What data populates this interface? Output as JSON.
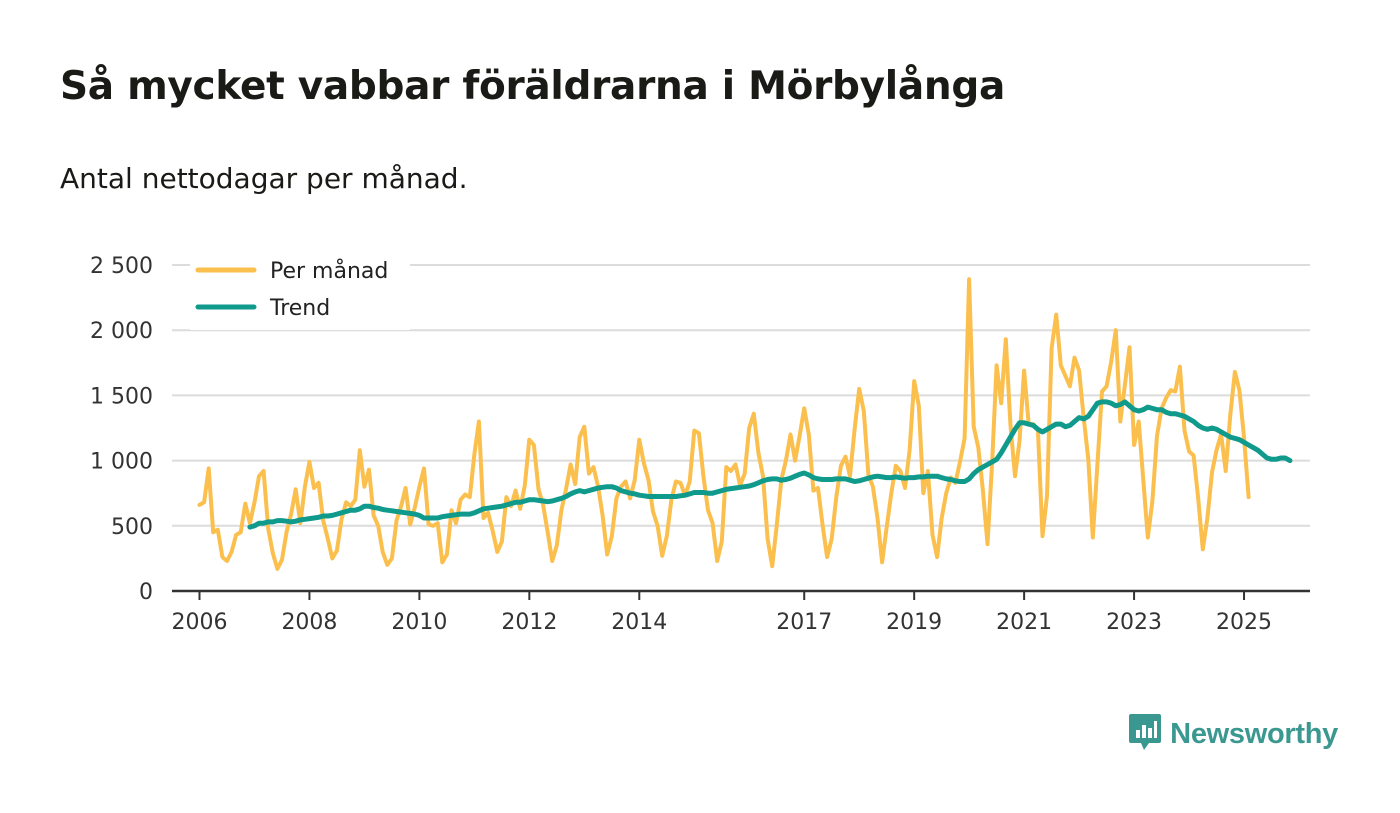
{
  "title": "Så mycket vabbar föräldrarna i Mörbylånga",
  "subtitle": "Antal nettodagar per månad.",
  "brand": {
    "name": "Newsworthy",
    "icon": "newsworthy-logo-icon",
    "color": "#3b9890"
  },
  "colors": {
    "monthly": "#fbbf4e",
    "trend": "#0f9a8c",
    "grid": "#dcdcdc",
    "axis": "#333333"
  },
  "chart_data": {
    "type": "line",
    "title": "Så mycket vabbar föräldrarna i Mörbylånga",
    "subtitle": "Antal nettodagar per månad.",
    "xlabel": "",
    "ylabel": "",
    "x_range": [
      2005.5,
      2026.2
    ],
    "ylim": [
      0,
      2500
    ],
    "y_ticks": [
      0,
      500,
      1000,
      1500,
      2000,
      2500
    ],
    "y_tick_labels": [
      "0",
      "500",
      "1 000",
      "1 500",
      "2 000",
      "2 500"
    ],
    "x_ticks": [
      2006,
      2008,
      2010,
      2012,
      2014,
      2017,
      2019,
      2021,
      2023,
      2025
    ],
    "x_tick_labels": [
      "2006",
      "2008",
      "2010",
      "2012",
      "2014",
      "2017",
      "2019",
      "2021",
      "2023",
      "2025"
    ],
    "grid": true,
    "legend_position": "top-left",
    "legend": [
      "Per månad",
      "Trend"
    ],
    "series": [
      {
        "name": "Per månad",
        "color": "#fbbf4e",
        "start_year": 2006,
        "step_months": 1,
        "values": [
          660,
          680,
          940,
          450,
          470,
          260,
          230,
          300,
          430,
          450,
          670,
          520,
          680,
          880,
          920,
          480,
          290,
          170,
          240,
          450,
          590,
          780,
          520,
          800,
          990,
          790,
          830,
          540,
          400,
          250,
          310,
          550,
          680,
          650,
          700,
          1080,
          800,
          930,
          580,
          500,
          300,
          200,
          250,
          540,
          650,
          790,
          510,
          640,
          800,
          940,
          510,
          500,
          520,
          220,
          280,
          620,
          520,
          700,
          740,
          720,
          1050,
          1300,
          560,
          600,
          460,
          300,
          380,
          720,
          650,
          770,
          630,
          810,
          1160,
          1120,
          780,
          660,
          450,
          230,
          350,
          620,
          780,
          970,
          820,
          1180,
          1260,
          900,
          950,
          800,
          580,
          280,
          420,
          710,
          800,
          840,
          710,
          850,
          1160,
          980,
          850,
          610,
          500,
          270,
          420,
          700,
          840,
          830,
          730,
          840,
          1230,
          1210,
          880,
          620,
          520,
          230,
          380,
          950,
          920,
          970,
          810,
          900,
          1250,
          1360,
          1060,
          880,
          400,
          190,
          500,
          850,
          1000,
          1200,
          1000,
          1190,
          1400,
          1200,
          770,
          790,
          510,
          260,
          400,
          720,
          960,
          1030,
          880,
          1240,
          1550,
          1380,
          890,
          800,
          560,
          220,
          490,
          750,
          960,
          920,
          790,
          1080,
          1610,
          1420,
          750,
          920,
          430,
          260,
          560,
          750,
          870,
          830,
          990,
          1170,
          2390,
          1260,
          1100,
          770,
          360,
          980,
          1730,
          1440,
          1930,
          1280,
          880,
          1150,
          1690,
          1280,
          1280,
          1240,
          420,
          730,
          1860,
          2120,
          1730,
          1650,
          1570,
          1790,
          1690,
          1330,
          1010,
          410,
          970,
          1530,
          1570,
          1760,
          2000,
          1300,
          1580,
          1870,
          1120,
          1300,
          860,
          410,
          690,
          1190,
          1400,
          1480,
          1540,
          1530,
          1720,
          1230,
          1070,
          1040,
          710,
          320,
          560,
          910,
          1080,
          1200,
          920,
          1350,
          1680,
          1540,
          1180,
          720
        ]
      },
      {
        "name": "Trend",
        "color": "#0f9a8c",
        "start_year": 2006.917,
        "step_months": 1,
        "values": [
          490,
          500,
          520,
          520,
          530,
          530,
          540,
          540,
          535,
          530,
          535,
          545,
          550,
          555,
          560,
          565,
          575,
          575,
          580,
          590,
          600,
          610,
          620,
          620,
          630,
          650,
          650,
          640,
          635,
          625,
          620,
          615,
          610,
          605,
          600,
          595,
          590,
          580,
          560,
          560,
          560,
          560,
          570,
          575,
          580,
          585,
          590,
          590,
          590,
          600,
          615,
          630,
          635,
          640,
          645,
          650,
          660,
          670,
          680,
          680,
          690,
          700,
          700,
          695,
          690,
          685,
          690,
          700,
          710,
          725,
          745,
          760,
          770,
          760,
          770,
          780,
          790,
          795,
          800,
          800,
          790,
          770,
          760,
          750,
          745,
          735,
          730,
          725,
          725,
          725,
          725,
          725,
          725,
          725,
          730,
          735,
          745,
          755,
          755,
          755,
          750,
          750,
          760,
          770,
          780,
          785,
          790,
          795,
          800,
          805,
          815,
          830,
          845,
          855,
          860,
          860,
          850,
          855,
          865,
          880,
          895,
          905,
          890,
          870,
          860,
          855,
          855,
          855,
          860,
          860,
          860,
          850,
          840,
          845,
          855,
          865,
          875,
          880,
          875,
          870,
          870,
          875,
          870,
          865,
          870,
          870,
          875,
          875,
          880,
          880,
          880,
          870,
          860,
          855,
          845,
          840,
          840,
          860,
          900,
          930,
          950,
          970,
          990,
          1010,
          1060,
          1120,
          1180,
          1240,
          1290,
          1290,
          1280,
          1270,
          1240,
          1220,
          1240,
          1260,
          1280,
          1280,
          1260,
          1270,
          1300,
          1330,
          1320,
          1340,
          1390,
          1440,
          1450,
          1450,
          1440,
          1420,
          1430,
          1450,
          1420,
          1390,
          1380,
          1390,
          1410,
          1400,
          1390,
          1390,
          1370,
          1360,
          1360,
          1350,
          1340,
          1320,
          1300,
          1270,
          1250,
          1240,
          1250,
          1240,
          1220,
          1200,
          1180,
          1170,
          1160,
          1140,
          1120,
          1100,
          1080,
          1050,
          1020,
          1010,
          1010,
          1020,
          1020,
          1000
        ]
      }
    ]
  }
}
